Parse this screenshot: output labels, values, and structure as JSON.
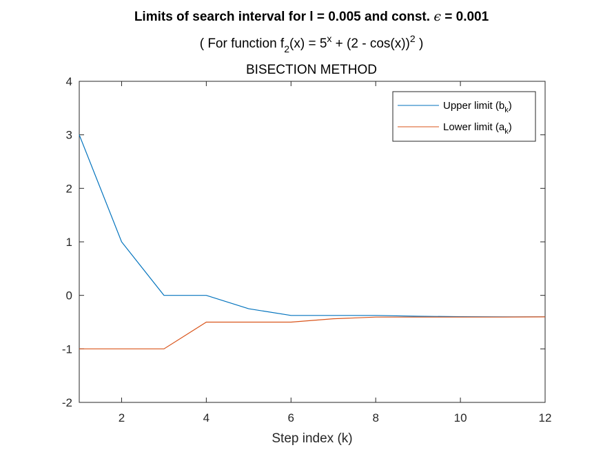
{
  "chart_data": {
    "type": "line",
    "title": "Limits of search interval for l = 0.005 and const.",
    "title_epsilon_symbol": "ϵ",
    "title_epsilon_value": "= 0.001",
    "subtitle_parts": [
      "( For function f",
      "2",
      "(x) = 5",
      "x",
      " + (2 - cos(x))",
      "2",
      " )"
    ],
    "subtitle2": "BISECTION METHOD",
    "xlabel": "Step index (k)",
    "ylabel": "",
    "xlim": [
      1,
      12
    ],
    "ylim": [
      -2,
      4
    ],
    "xticks": [
      2,
      4,
      6,
      8,
      10,
      12
    ],
    "yticks": [
      -2,
      -1,
      0,
      1,
      2,
      3,
      4
    ],
    "grid": false,
    "legend_position": "top-right",
    "x": [
      1,
      2,
      3,
      4,
      5,
      6,
      7,
      8,
      9,
      10,
      11,
      12
    ],
    "series": [
      {
        "name_parts": [
          "Upper limit (b",
          "k",
          ")"
        ],
        "color": "#0072BD",
        "values": [
          3,
          1,
          0,
          0,
          -0.25,
          -0.375,
          -0.375,
          -0.375,
          -0.391,
          -0.398,
          -0.402,
          -0.402
        ]
      },
      {
        "name_parts": [
          "Lower limit (a",
          "k",
          ")"
        ],
        "color": "#D95319",
        "values": [
          -1,
          -1,
          -1,
          -0.5,
          -0.5,
          -0.5,
          -0.4375,
          -0.406,
          -0.406,
          -0.406,
          -0.406,
          -0.402
        ]
      }
    ]
  }
}
